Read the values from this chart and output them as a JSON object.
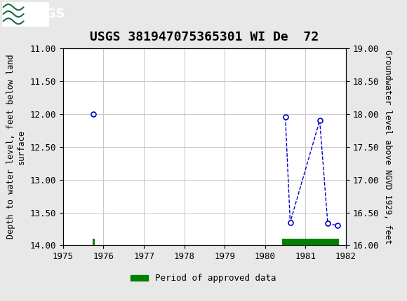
{
  "title": "USGS 381947075365301 WI De  72",
  "ylabel_left": "Depth to water level, feet below land\nsurface",
  "ylabel_right": "Groundwater level above NGVD 1929, feet",
  "xlim": [
    1975,
    1982
  ],
  "ylim_left": [
    14.0,
    11.0
  ],
  "ylim_right": [
    16.0,
    19.0
  ],
  "yticks_left": [
    11.0,
    11.5,
    12.0,
    12.5,
    13.0,
    13.5,
    14.0
  ],
  "yticks_right": [
    16.0,
    16.5,
    17.0,
    17.5,
    18.0,
    18.5,
    19.0
  ],
  "xticks": [
    1975,
    1976,
    1977,
    1978,
    1979,
    1980,
    1981,
    1982
  ],
  "isolated_x": [
    1975.75
  ],
  "isolated_y": [
    12.0
  ],
  "connected_x": [
    1980.5,
    1980.62,
    1981.35,
    1981.55,
    1981.8
  ],
  "connected_y": [
    12.05,
    13.65,
    12.1,
    13.67,
    13.7
  ],
  "green_bars": [
    {
      "x_start": 1975.73,
      "x_end": 1975.78
    },
    {
      "x_start": 1980.42,
      "x_end": 1981.82
    }
  ],
  "line_color": "#0000CC",
  "marker_color": "#0000CC",
  "green_color": "#008000",
  "bg_color": "#e8e8e8",
  "plot_bg_color": "#ffffff",
  "header_color": "#1a6b3c",
  "grid_color": "#c8c8c8",
  "title_fontsize": 13,
  "label_fontsize": 8.5,
  "tick_fontsize": 9,
  "legend_label": "Period of approved data",
  "green_bar_y": 14.0,
  "green_bar_height": 0.1
}
